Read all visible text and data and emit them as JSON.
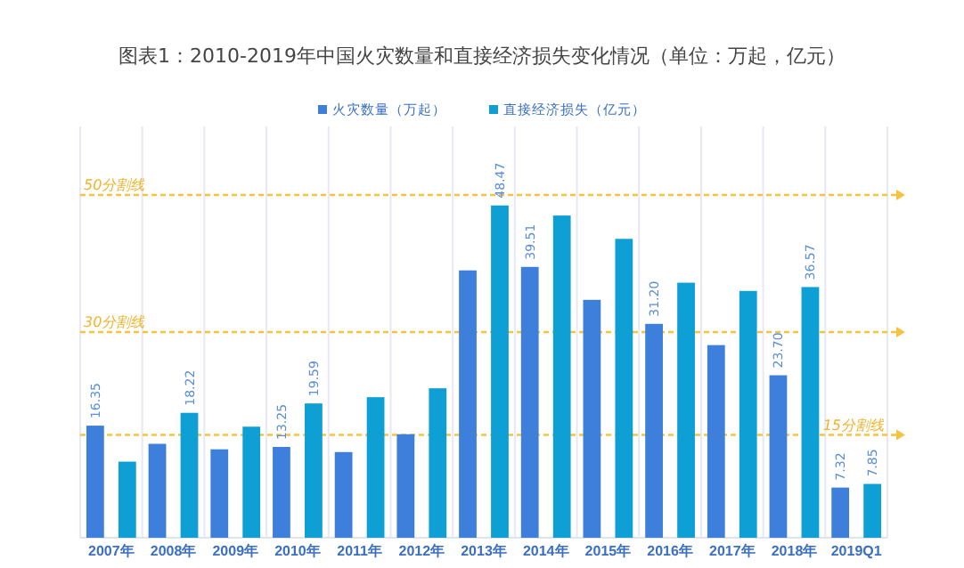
{
  "chart_data": {
    "type": "bar",
    "title": "图表1：2010-2019年中国火灾数量和直接经济损失变化情况（单位：万起，亿元）",
    "categories": [
      "2007年",
      "2008年",
      "2009年",
      "2010年",
      "2011年",
      "2012年",
      "2013年",
      "2014年",
      "2015年",
      "2016年",
      "2017年",
      "2018年",
      "2019Q1"
    ],
    "series": [
      {
        "name": "火灾数量（万起）",
        "color": "#3f7fdc",
        "values": [
          16.35,
          13.7,
          12.9,
          13.25,
          12.5,
          15.1,
          39.0,
          39.51,
          34.7,
          31.2,
          28.1,
          23.7,
          7.32
        ],
        "value_labels": [
          "16.35",
          null,
          null,
          "13.25",
          null,
          null,
          null,
          "39.51",
          null,
          "31.20",
          null,
          "23.70",
          "7.32"
        ]
      },
      {
        "name": "直接经济损失（亿元）",
        "color": "#0ea0d4",
        "values": [
          11.1,
          18.22,
          16.2,
          19.59,
          20.5,
          21.8,
          48.47,
          47.0,
          43.6,
          37.2,
          36.0,
          36.57,
          7.85
        ],
        "value_labels": [
          null,
          "18.22",
          null,
          "19.59",
          null,
          null,
          "48.47",
          null,
          null,
          null,
          null,
          "36.57",
          "7.85"
        ]
      }
    ],
    "ylim": [
      0,
      60
    ],
    "tick_labels": "x",
    "grid": "x",
    "legend": "top",
    "ref_lines": [
      {
        "axis": "y",
        "value": 50,
        "label": "50分割线",
        "color": "#f5c342",
        "line_style": "dashed"
      },
      {
        "axis": "y",
        "value": 30,
        "label": "30分割线",
        "color": "#f5c342",
        "line_style": "dashed"
      },
      {
        "axis": "y",
        "value": 15,
        "label": "15分割线",
        "color": "#f5c342",
        "line_style": "dashed"
      }
    ]
  }
}
